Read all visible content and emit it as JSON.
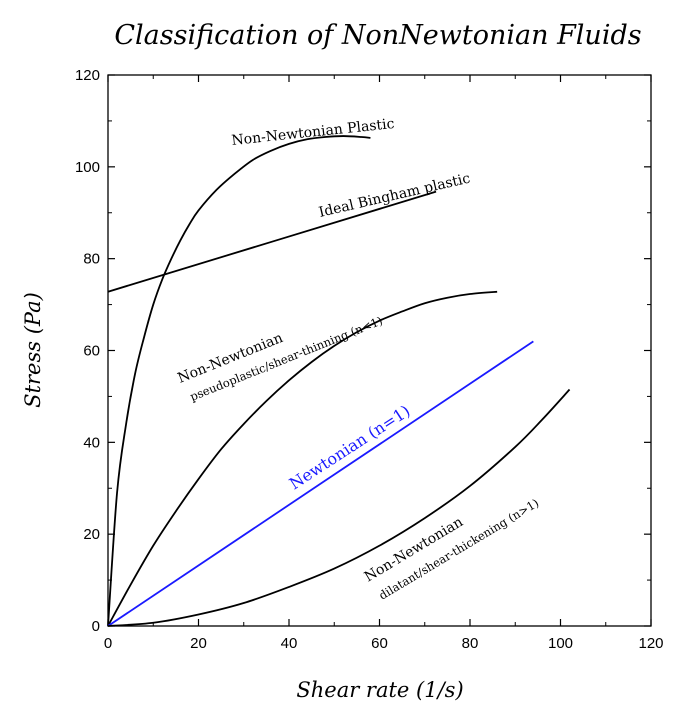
{
  "chart_data": {
    "type": "line",
    "title": "Classification of NonNewtonian Fluids",
    "xlabel": "Shear rate (1/s)",
    "ylabel": "Stress (Pa)",
    "xlim": [
      0,
      120
    ],
    "ylim": [
      0,
      120
    ],
    "xticks": [
      0,
      20,
      40,
      60,
      80,
      100,
      120
    ],
    "yticks": [
      0,
      20,
      40,
      60,
      80,
      100,
      120
    ],
    "grid": false,
    "legend": "none",
    "series": [
      {
        "color": "#000000",
        "annotation": [
          "Non-Newtonian Plastic"
        ],
        "x": [
          0,
          2,
          4,
          6,
          8,
          10,
          12,
          14,
          16,
          18,
          20,
          24,
          28,
          32,
          36,
          40,
          44,
          48,
          52,
          56,
          58
        ],
        "y": [
          0,
          29,
          44,
          55,
          63,
          70,
          75.5,
          80,
          84,
          87.5,
          90.5,
          95,
          98.5,
          101.5,
          103.5,
          105,
          106,
          106.5,
          106.7,
          106.5,
          106.3
        ]
      },
      {
        "color": "#000000",
        "annotation": [
          "Ideal Bingham plastic"
        ],
        "x": [
          0,
          72.5
        ],
        "y": [
          72.8,
          94.6
        ]
      },
      {
        "color": "#000000",
        "annotation": [
          "Non-Newtonian",
          "pseudoplastic/shear-thinning (n<1)"
        ],
        "x": [
          0,
          5,
          10,
          15,
          20,
          25,
          30,
          35,
          40,
          45,
          50,
          55,
          60,
          65,
          70,
          75,
          80,
          86
        ],
        "y": [
          0,
          9,
          17.5,
          25,
          32,
          38.5,
          44,
          49,
          53.5,
          57.5,
          61,
          64,
          66.5,
          68.5,
          70.3,
          71.5,
          72.3,
          72.8
        ]
      },
      {
        "color": "#1a1aff",
        "annotation": [
          "Newtonian (n=1)"
        ],
        "x": [
          0,
          94
        ],
        "y": [
          0,
          62
        ]
      },
      {
        "color": "#000000",
        "annotation": [
          "Non-Newtonian",
          "dilatant/shear-thickening (n>1)"
        ],
        "x": [
          0,
          10,
          20,
          30,
          40,
          50,
          60,
          70,
          80,
          90,
          96,
          102
        ],
        "y": [
          0,
          0.7,
          2.5,
          5,
          8.5,
          12.5,
          17.5,
          23.5,
          30.5,
          39,
          45,
          51.5
        ]
      }
    ]
  }
}
